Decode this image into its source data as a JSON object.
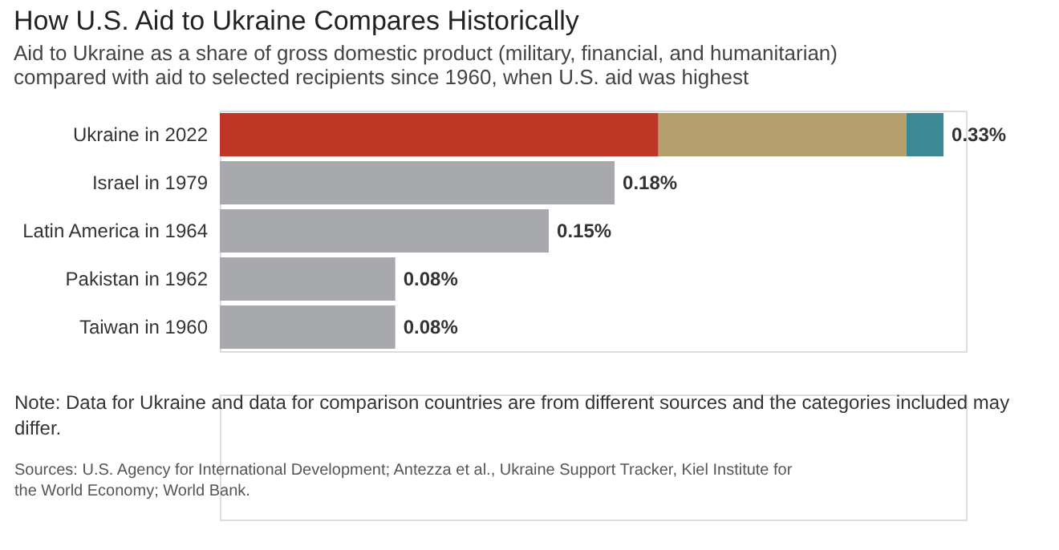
{
  "chart_data": {
    "type": "bar",
    "orientation": "horizontal",
    "stacked": true,
    "title": "How U.S. Aid to Ukraine Compares Historically",
    "subtitle": "Aid to Ukraine as a share of gross domestic product (military, financial, and humanitarian) compared with aid to selected recipients since 1960, when U.S. aid was highest",
    "categories": [
      "Ukraine in 2022",
      "Israel in 1979",
      "Latin America in 1964",
      "Pakistan in 1962",
      "Taiwan in 1960"
    ],
    "series": [
      {
        "color": "#bf3526",
        "values": [
          0.2,
          null,
          null,
          null,
          null
        ]
      },
      {
        "color": "#b59f6c",
        "values": [
          0.113,
          null,
          null,
          null,
          null
        ]
      },
      {
        "color": "#3b8a93",
        "values": [
          0.017,
          null,
          null,
          null,
          null
        ]
      },
      {
        "color": "#a7a9ac",
        "values": [
          null,
          0.18,
          0.15,
          0.08,
          0.08
        ],
        "value_labels": [
          null,
          "0.18%",
          "0.15%",
          "0.08%",
          "0.08%"
        ]
      }
    ],
    "totals": [
      "0.33%",
      null,
      null,
      null,
      null
    ],
    "legend": false,
    "annotations": [
      "Note: Data for Ukraine and data for comparison countries are from different sources and the categories included may differ.",
      "Sources: U.S. Agency for International Development; Antezza et al., Ukraine Support Tracker, Kiel Institute for the World Economy; World Bank."
    ]
  }
}
